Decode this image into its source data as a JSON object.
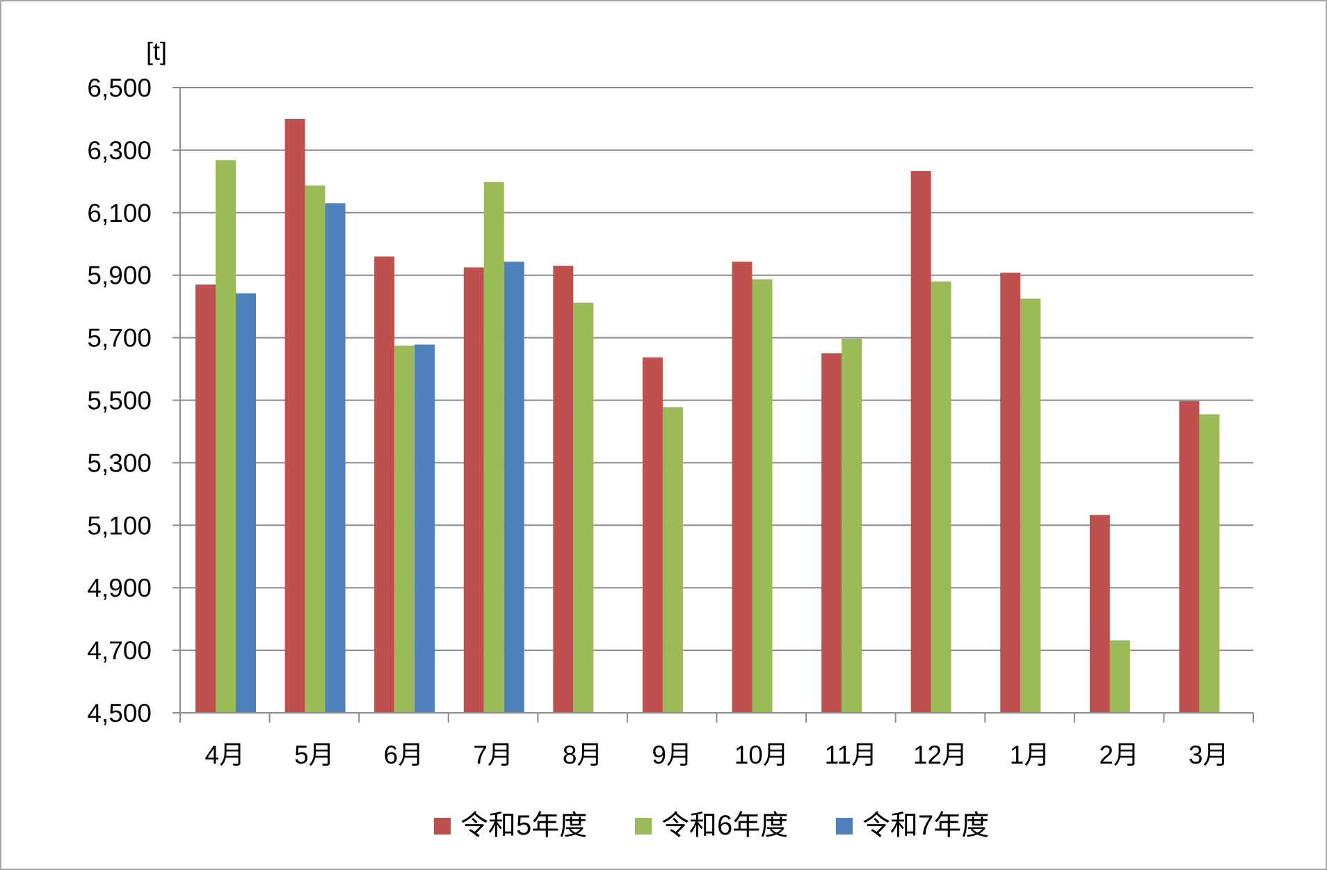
{
  "chart_data": {
    "type": "bar",
    "unit_label": "[t]",
    "categories": [
      "4月",
      "5月",
      "6月",
      "7月",
      "8月",
      "9月",
      "10月",
      "11月",
      "12月",
      "1月",
      "2月",
      "3月"
    ],
    "ylim": [
      4500,
      6500
    ],
    "ytick_step": 200,
    "ytick_labels": [
      "4,500",
      "4,700",
      "4,900",
      "5,100",
      "5,300",
      "5,500",
      "5,700",
      "5,900",
      "6,100",
      "6,300",
      "6,500"
    ],
    "grid": true,
    "legend_position": "bottom",
    "series": [
      {
        "name": "令和5年度",
        "color": "#c0504d",
        "values": [
          5870,
          6400,
          5960,
          5925,
          5930,
          5637,
          5943,
          5650,
          6233,
          5908,
          5133,
          5497
        ]
      },
      {
        "name": "令和6年度",
        "color": "#9bbb59",
        "values": [
          6268,
          6187,
          5675,
          6198,
          5812,
          5478,
          5887,
          5697,
          5880,
          5825,
          4732,
          5455
        ]
      },
      {
        "name": "令和7年度",
        "color": "#4f81bd",
        "values": [
          5842,
          6130,
          5678,
          5943,
          null,
          null,
          null,
          null,
          null,
          null,
          null,
          null
        ]
      }
    ]
  }
}
